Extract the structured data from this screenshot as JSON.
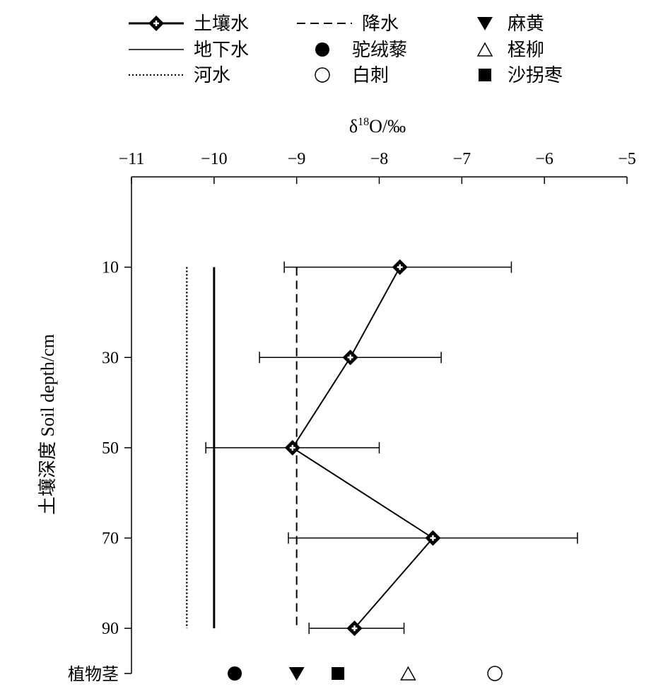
{
  "chart_data": {
    "type": "line",
    "x_axis": {
      "label": "δ18O/‰",
      "label_main": "δ",
      "label_sup": "18",
      "label_rest": "O/‰",
      "position": "top",
      "range": [
        -11,
        -5
      ],
      "ticks": [
        -11,
        -10,
        -9,
        -8,
        -7,
        -6,
        -5
      ],
      "tick_labels": [
        "−11",
        "−10",
        "−9",
        "−8",
        "−7",
        "−6",
        "−5"
      ]
    },
    "y_axis": {
      "label": "土壤深度 Soil depth/cm",
      "inverted": true,
      "range": [
        -10,
        100
      ],
      "ticks": [
        10,
        30,
        50,
        70,
        90
      ],
      "tick_labels": [
        "10",
        "30",
        "50",
        "70",
        "90"
      ],
      "stem_label": "植物茎"
    },
    "legend": [
      {
        "label": "土壤水",
        "symbol": "line-diamond"
      },
      {
        "label": "降水",
        "symbol": "dashed-line"
      },
      {
        "label": "麻黄",
        "symbol": "filled-triangle-down"
      },
      {
        "label": "地下水",
        "symbol": "solid-line"
      },
      {
        "label": "驼绒藜",
        "symbol": "filled-circle"
      },
      {
        "label": "柽柳",
        "symbol": "open-triangle-up"
      },
      {
        "label": "河水",
        "symbol": "dotted-line"
      },
      {
        "label": "白刺",
        "symbol": "open-circle"
      },
      {
        "label": "沙拐枣",
        "symbol": "filled-square"
      }
    ],
    "series": [
      {
        "name": "土壤水",
        "points": [
          {
            "depth": 10,
            "x": -7.75,
            "err_low": -9.15,
            "err_high": -6.4
          },
          {
            "depth": 30,
            "x": -8.35,
            "err_low": -9.45,
            "err_high": -7.25
          },
          {
            "depth": 50,
            "x": -9.05,
            "err_low": -10.1,
            "err_high": -8.0
          },
          {
            "depth": 70,
            "x": -7.35,
            "err_low": -9.1,
            "err_high": -5.6
          },
          {
            "depth": 90,
            "x": -8.3,
            "err_low": -8.85,
            "err_high": -7.7
          }
        ]
      },
      {
        "name": "降水",
        "x": -9.0,
        "depth_range": [
          10,
          90
        ]
      },
      {
        "name": "地下水",
        "x": -10.0,
        "depth_range": [
          10,
          90
        ]
      },
      {
        "name": "河水",
        "x": -10.33,
        "depth_range": [
          10,
          90
        ]
      }
    ],
    "plant_stems": [
      {
        "name": "驼绒藜",
        "x": -9.75
      },
      {
        "name": "麻黄",
        "x": -9.0
      },
      {
        "name": "沙拐枣",
        "x": -8.5
      },
      {
        "name": "柽柳",
        "x": -7.65
      },
      {
        "name": "白刺",
        "x": -6.6
      }
    ]
  }
}
